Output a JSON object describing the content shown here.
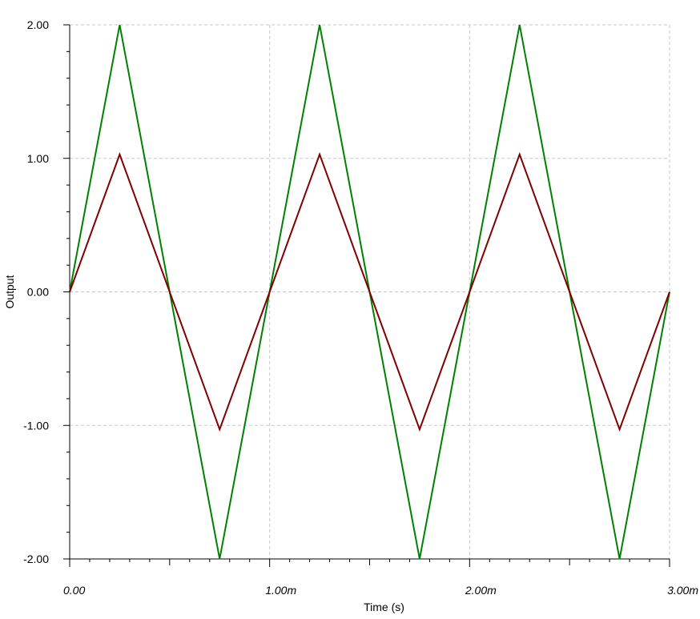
{
  "chart_data": {
    "type": "line",
    "xlabel": "Time (s)",
    "ylabel": "Output",
    "xlim": [
      0,
      0.003
    ],
    "ylim": [
      -2,
      2
    ],
    "x_ticks": [
      {
        "value": 0,
        "label": "0.00"
      },
      {
        "value": 0.001,
        "label": "1.00m"
      },
      {
        "value": 0.002,
        "label": "2.00m"
      },
      {
        "value": 0.003,
        "label": "3.00m"
      }
    ],
    "y_ticks": [
      {
        "value": 2,
        "label": "2.00"
      },
      {
        "value": 1,
        "label": "1.00"
      },
      {
        "value": 0,
        "label": "0.00"
      },
      {
        "value": -1,
        "label": "-1.00"
      },
      {
        "value": -2,
        "label": "-2.00"
      }
    ],
    "grid": true,
    "series": [
      {
        "color": "#008000",
        "points": [
          [
            0,
            0
          ],
          [
            0.00025,
            2
          ],
          [
            0.00075,
            -2
          ],
          [
            0.00125,
            2
          ],
          [
            0.00175,
            -2
          ],
          [
            0.00225,
            2
          ],
          [
            0.00275,
            -2
          ],
          [
            0.003,
            0
          ]
        ]
      },
      {
        "color": "#800000",
        "points": [
          [
            0,
            0
          ],
          [
            0.00025,
            1.03
          ],
          [
            0.00075,
            -1.03
          ],
          [
            0.00125,
            1.03
          ],
          [
            0.00175,
            -1.03
          ],
          [
            0.00225,
            1.03
          ],
          [
            0.00275,
            -1.03
          ],
          [
            0.003,
            0
          ]
        ]
      }
    ]
  }
}
